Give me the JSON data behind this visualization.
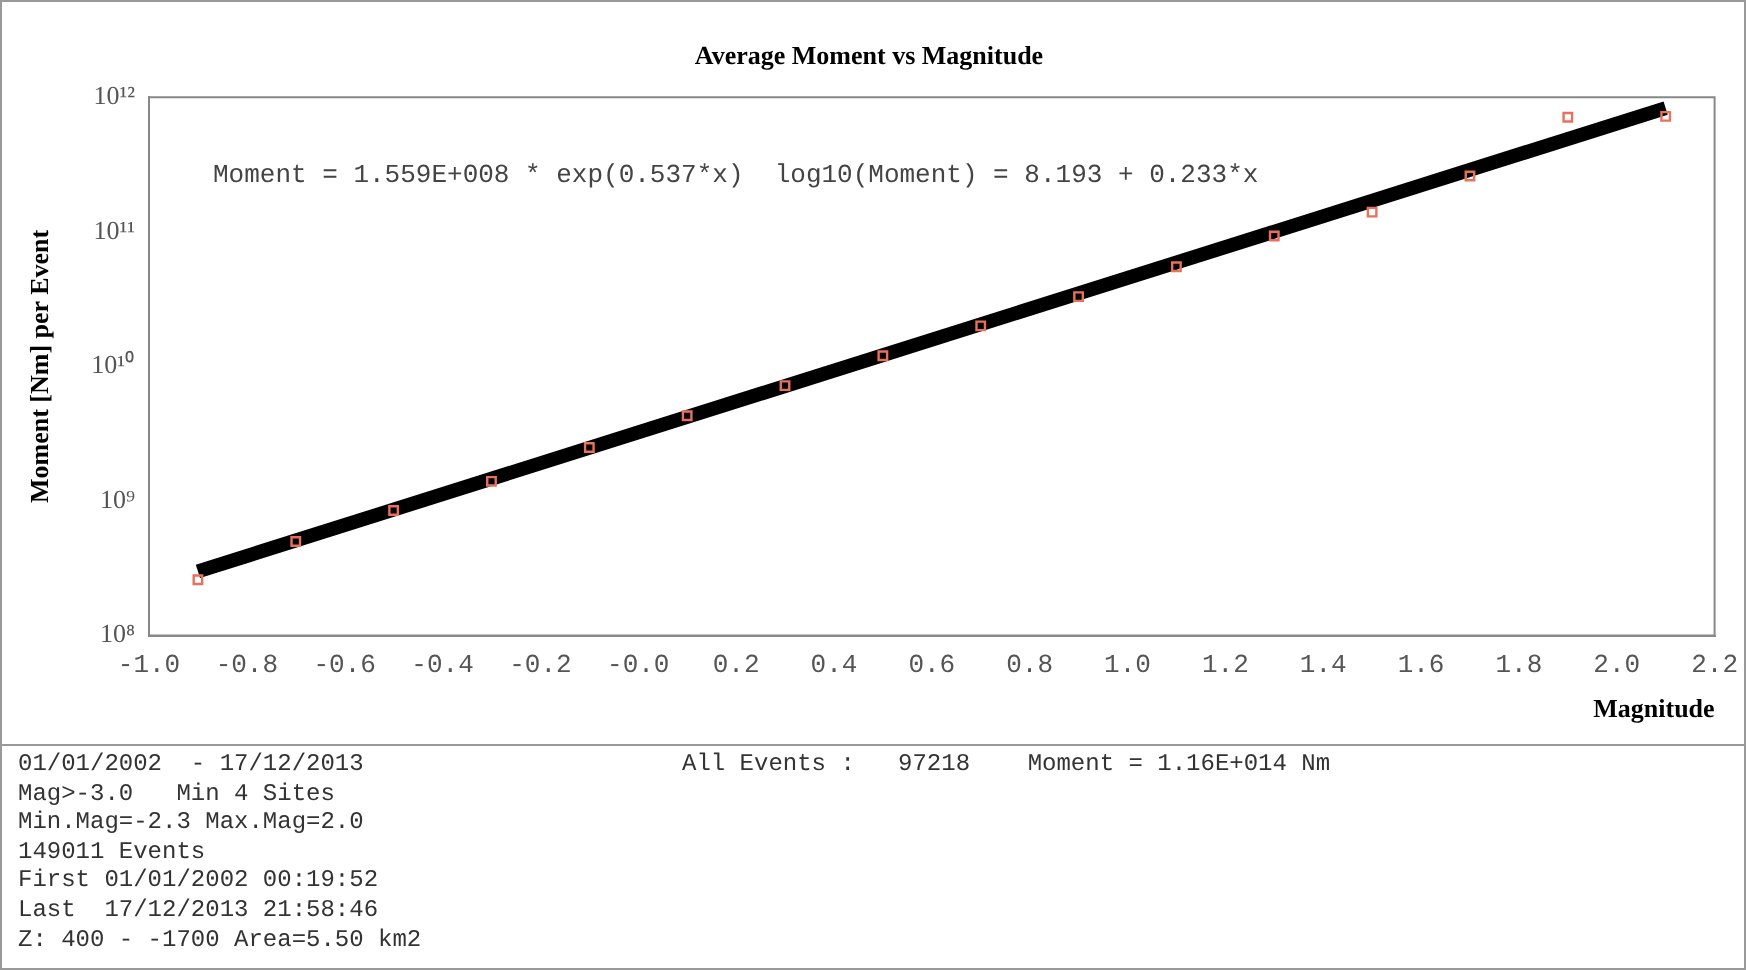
{
  "chart_data": {
    "type": "scatter",
    "title": "Average Moment vs Magnitude",
    "xlabel": "Magnitude",
    "ylabel": "Moment [Nm] per Event",
    "log": "y",
    "grid": false,
    "legend": false,
    "marker": "square",
    "xlim": [
      -1.0,
      2.2
    ],
    "ylim": [
      100000000.0,
      1000000000000.0
    ],
    "xticks": [
      {
        "value": -1.0,
        "label": "-1.0"
      },
      {
        "value": -0.8,
        "label": "-0.8"
      },
      {
        "value": -0.6,
        "label": "-0.6"
      },
      {
        "value": -0.4,
        "label": "-0.4"
      },
      {
        "value": -0.2,
        "label": "-0.2"
      },
      {
        "value": 0,
        "label": "-0.0"
      },
      {
        "value": 0.2,
        "label": "0.2"
      },
      {
        "value": 0.4,
        "label": "0.4"
      },
      {
        "value": 0.6,
        "label": "0.6"
      },
      {
        "value": 0.8,
        "label": "0.8"
      },
      {
        "value": 1.0,
        "label": "1.0"
      },
      {
        "value": 1.2,
        "label": "1.2"
      },
      {
        "value": 1.4,
        "label": "1.4"
      },
      {
        "value": 1.6,
        "label": "1.6"
      },
      {
        "value": 1.8,
        "label": "1.8"
      },
      {
        "value": 2.0,
        "label": "2.0"
      },
      {
        "value": 2.2,
        "label": "2.2"
      }
    ],
    "yticks": [
      {
        "value": 100000000.0,
        "label": "10⁸"
      },
      {
        "value": 1000000000.0,
        "label": "10⁹"
      },
      {
        "value": 10000000000.0,
        "label": "10¹⁰"
      },
      {
        "value": 100000000000.0,
        "label": "10¹¹"
      },
      {
        "value": 1000000000000.0,
        "label": "10¹²"
      }
    ],
    "series": [
      {
        "type": "scatter",
        "color": "#e8705c",
        "x": [
          -0.9,
          -0.7,
          -0.5,
          -0.3,
          -0.1,
          0.1,
          0.3,
          0.5,
          0.7,
          0.9,
          1.1,
          1.3,
          1.5,
          1.7,
          1.9,
          2.1
        ],
        "values": [
          260000000.0,
          500000000.0,
          850000000.0,
          1400000000.0,
          2500000000.0,
          4300000000.0,
          7200000000.0,
          12000000000.0,
          20000000000.0,
          33000000000.0,
          55000000000.0,
          93000000000.0,
          140000000000.0,
          260000000000.0,
          710000000000.0,
          720000000000.0
        ]
      },
      {
        "type": "line",
        "color": "#000000",
        "marker": "none",
        "x": [
          -0.9,
          2.1
        ],
        "values": [
          300000000.0,
          830000000000.0
        ]
      }
    ],
    "annotations": [
      "Moment = 1.559E+008 * exp(0.537*x)  log10(Moment) = 8.193 + 0.233*x",
      "01/01/2002  - 17/12/2013",
      "All Events :   97218    Moment = 1.16E+014 Nm",
      "Mag>-3.0   Min 4 Sites",
      "Min.Mag=-2.3 Max.Mag=2.0",
      "149011 Events",
      "First 01/01/2002 00:19:52",
      "Last  17/12/2013 21:58:46",
      "Z: 400 - -1700 Area=5.50 km2"
    ]
  }
}
